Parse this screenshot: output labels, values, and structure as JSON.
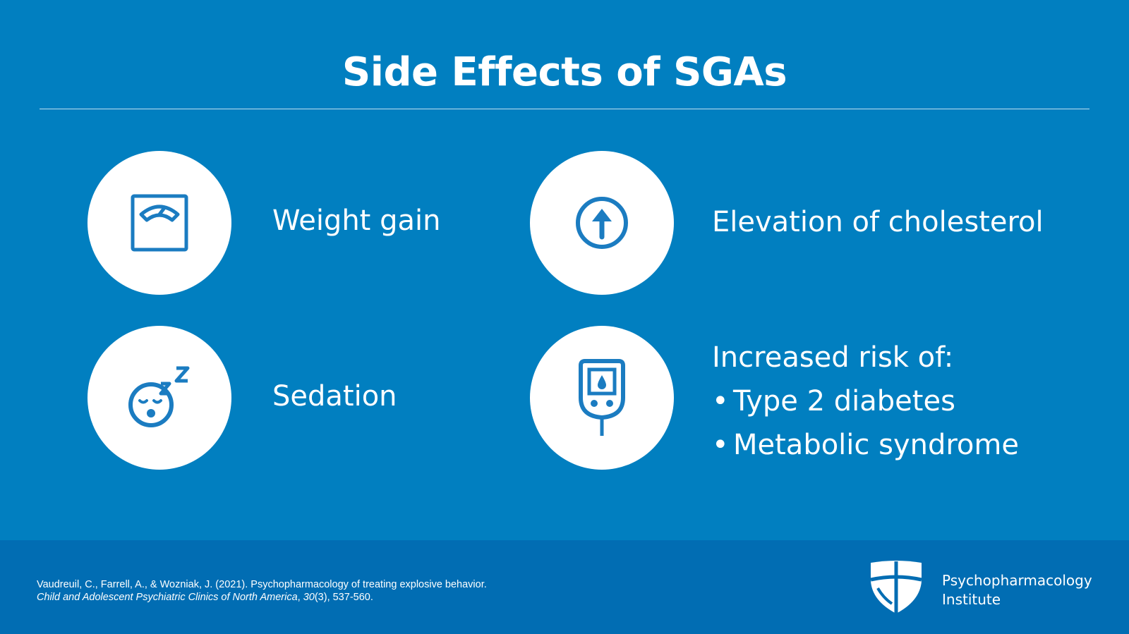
{
  "title": "Side Effects of SGAs",
  "colors": {
    "background": "#017fc0",
    "footer": "#016db3",
    "icon": "#1b7cc1",
    "text": "#ffffff"
  },
  "items": [
    {
      "label": "Weight gain",
      "icon": "scale-icon"
    },
    {
      "label": "Elevation of cholesterol",
      "icon": "arrow-up-circle-icon"
    },
    {
      "label": "Sedation",
      "icon": "sleeping-face-icon"
    },
    {
      "icon": "glucose-meter-icon",
      "heading": "Increased risk of:",
      "bullets": [
        "Type 2 diabetes",
        "Metabolic syndrome"
      ]
    }
  ],
  "bullet_glyph": "•",
  "citation": {
    "line1": "Vaudreuil, C., Farrell, A., & Wozniak, J. (2021). Psychopharmacology of treating explosive behavior.",
    "journal": "Child and Adolescent Psychiatric Clinics of North America",
    "sep": ", ",
    "volume": "30",
    "rest": "(3), 537-560."
  },
  "logo": {
    "icon": "shield-logo-icon",
    "line1": "Psychopharmacology",
    "line2": "Institute"
  }
}
